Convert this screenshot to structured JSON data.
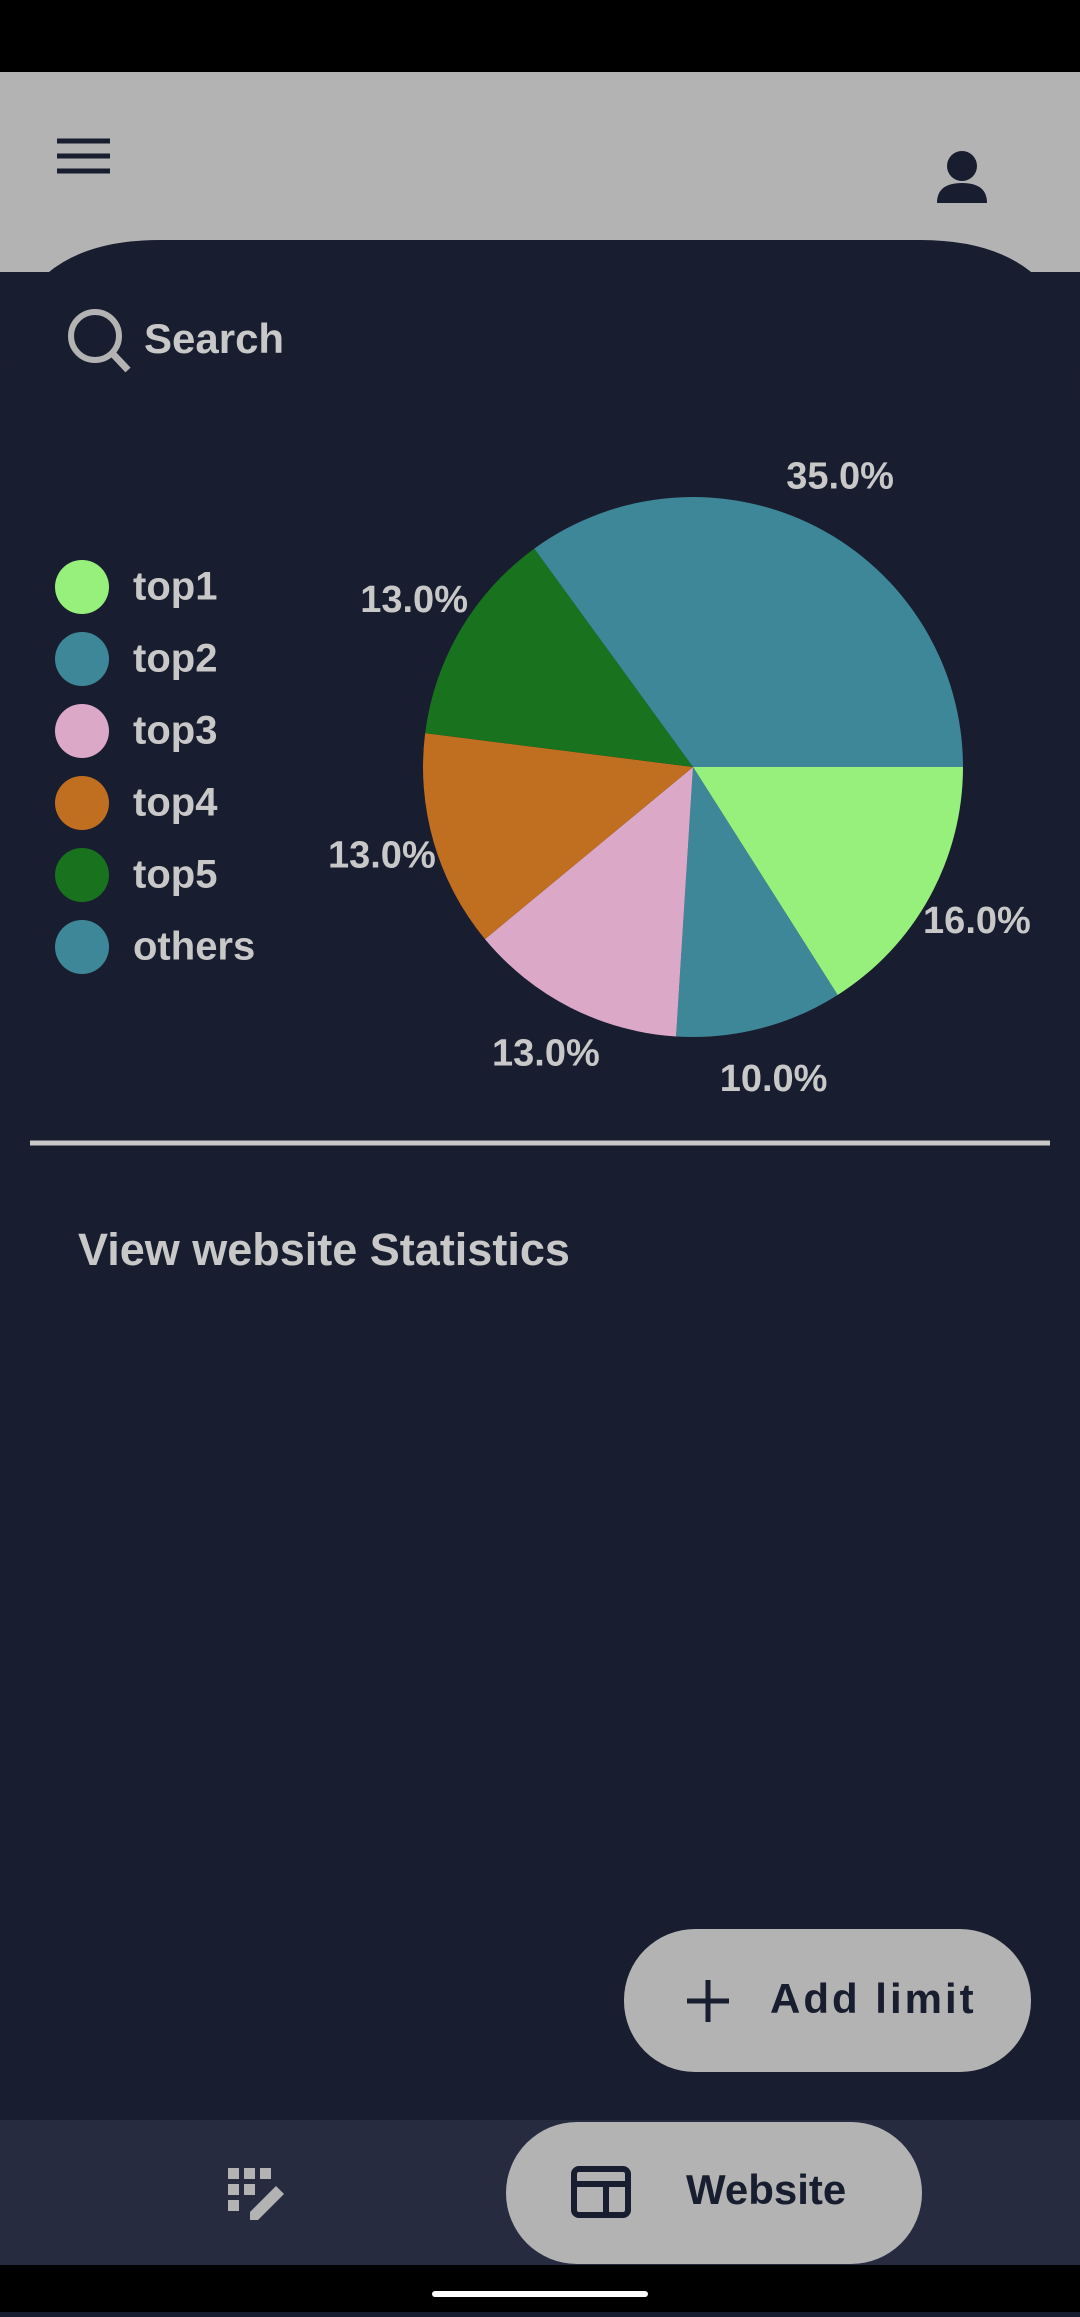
{
  "app": {
    "search": "Search",
    "section_title": "View website Statistics",
    "fab_label": "Add limit",
    "nav_label": "Website"
  },
  "chart_data": {
    "type": "pie",
    "categories": [
      "top1",
      "top2",
      "top3",
      "top4",
      "top5",
      "others"
    ],
    "values": [
      16,
      10,
      13,
      13,
      13,
      35
    ],
    "value_labels": [
      "16.0%",
      "10.0%",
      "13.0%",
      "13.0%",
      "13.0%",
      "35.0%"
    ],
    "colors": [
      "#98f07c",
      "#3e8799",
      "#dca8c8",
      "#c06e20",
      "#18721e",
      "#3e8799"
    ],
    "legend": "left"
  }
}
